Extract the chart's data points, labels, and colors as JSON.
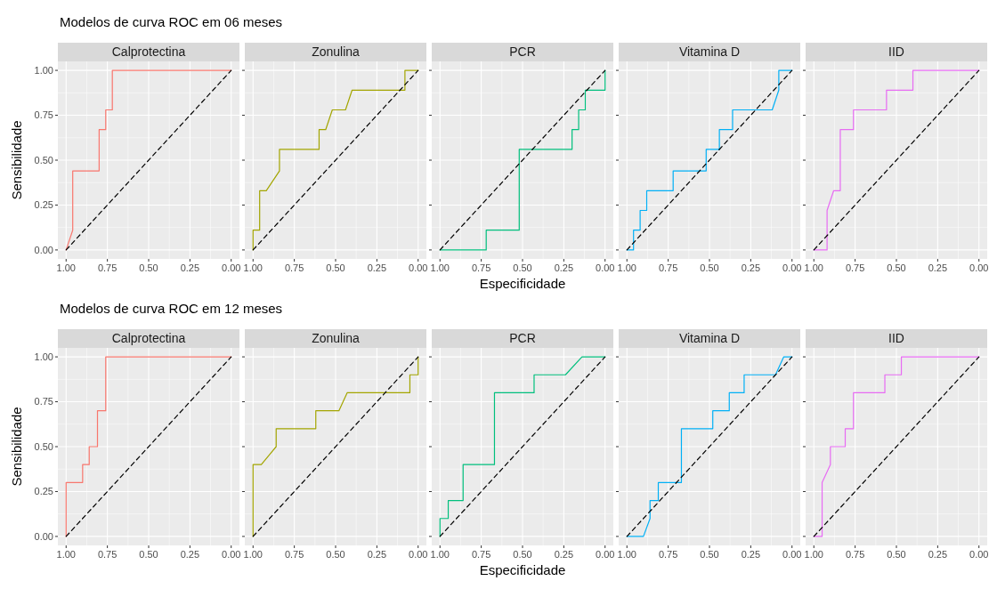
{
  "chart_data": [
    {
      "type": "line",
      "title": "Calprotectina",
      "annotations": [
        "Modelos de curva ROC em 06 meses"
      ],
      "ylabel": "Sensibilidade",
      "xlim": [
        1.05,
        -0.05
      ],
      "ylim": [
        -0.05,
        1.05
      ],
      "xticks": [
        {
          "value": 1,
          "label": "1.00"
        },
        {
          "value": 0.75,
          "label": "0.75"
        },
        {
          "value": 0.5,
          "label": "0.50"
        },
        {
          "value": 0.25,
          "label": "0.25"
        },
        {
          "value": 0,
          "label": "0.00"
        }
      ],
      "yticks": [
        {
          "value": 0,
          "label": "0.00"
        },
        {
          "value": 0.25,
          "label": "0.25"
        },
        {
          "value": 0.5,
          "label": "0.50"
        },
        {
          "value": 0.75,
          "label": "0.75"
        },
        {
          "value": 1,
          "label": "1.00"
        }
      ],
      "grid": true,
      "series": [
        {
          "color": "#f8766d",
          "x": [
            1,
            0.96,
            0.96,
            0.8,
            0.8,
            0.76,
            0.76,
            0.72,
            0.72,
            0
          ],
          "values": [
            0,
            0.11,
            0.44,
            0.44,
            0.67,
            0.67,
            0.78,
            0.78,
            1,
            1
          ]
        },
        {
          "color": "#000000",
          "line_style": "dashed",
          "x": [
            1,
            0
          ],
          "values": [
            0,
            1
          ]
        }
      ]
    },
    {
      "type": "line",
      "title": "Zonulina",
      "xlim": [
        1.05,
        -0.05
      ],
      "ylim": [
        -0.05,
        1.05
      ],
      "xticks": [
        {
          "value": 1,
          "label": "1.00"
        },
        {
          "value": 0.75,
          "label": "0.75"
        },
        {
          "value": 0.5,
          "label": "0.50"
        },
        {
          "value": 0.25,
          "label": "0.25"
        },
        {
          "value": 0,
          "label": "0.00"
        }
      ],
      "yticks": [
        {
          "value": 0,
          "label": null
        },
        {
          "value": 0.25,
          "label": null
        },
        {
          "value": 0.5,
          "label": null
        },
        {
          "value": 0.75,
          "label": null
        },
        {
          "value": 1,
          "label": null
        }
      ],
      "grid": true,
      "tick_labels": "x",
      "series": [
        {
          "color": "#a3a500",
          "x": [
            1,
            1,
            0.96,
            0.96,
            0.92,
            0.84,
            0.84,
            0.6,
            0.6,
            0.56,
            0.52,
            0.44,
            0.4,
            0.08,
            0.08,
            0
          ],
          "values": [
            0,
            0.11,
            0.11,
            0.33,
            0.33,
            0.44,
            0.56,
            0.56,
            0.67,
            0.67,
            0.78,
            0.78,
            0.89,
            0.89,
            1,
            1
          ]
        },
        {
          "color": "#000000",
          "line_style": "dashed",
          "x": [
            1,
            0
          ],
          "values": [
            0,
            1
          ]
        }
      ]
    },
    {
      "type": "line",
      "title": "PCR",
      "xlabel": "Especificidade",
      "xlim": [
        1.05,
        -0.05
      ],
      "ylim": [
        -0.05,
        1.05
      ],
      "xticks": [
        {
          "value": 1,
          "label": "1.00"
        },
        {
          "value": 0.75,
          "label": "0.75"
        },
        {
          "value": 0.5,
          "label": "0.50"
        },
        {
          "value": 0.25,
          "label": "0.25"
        },
        {
          "value": 0,
          "label": "0.00"
        }
      ],
      "yticks": [
        {
          "value": 0,
          "label": null
        },
        {
          "value": 0.25,
          "label": null
        },
        {
          "value": 0.5,
          "label": null
        },
        {
          "value": 0.75,
          "label": null
        },
        {
          "value": 1,
          "label": null
        }
      ],
      "grid": true,
      "tick_labels": "x",
      "series": [
        {
          "color": "#00bf7d",
          "x": [
            1,
            0.72,
            0.72,
            0.52,
            0.52,
            0.2,
            0.2,
            0.16,
            0.16,
            0.12,
            0.12,
            0,
            0
          ],
          "values": [
            0,
            0,
            0.11,
            0.11,
            0.56,
            0.56,
            0.67,
            0.67,
            0.78,
            0.78,
            0.89,
            0.89,
            1
          ]
        },
        {
          "color": "#000000",
          "line_style": "dashed",
          "x": [
            1,
            0
          ],
          "values": [
            0,
            1
          ]
        }
      ]
    },
    {
      "type": "line",
      "title": "Vitamina D",
      "xlim": [
        1.05,
        -0.05
      ],
      "ylim": [
        -0.05,
        1.05
      ],
      "xticks": [
        {
          "value": 1,
          "label": "1.00"
        },
        {
          "value": 0.75,
          "label": "0.75"
        },
        {
          "value": 0.5,
          "label": "0.50"
        },
        {
          "value": 0.25,
          "label": "0.25"
        },
        {
          "value": 0,
          "label": "0.00"
        }
      ],
      "yticks": [
        {
          "value": 0,
          "label": null
        },
        {
          "value": 0.25,
          "label": null
        },
        {
          "value": 0.5,
          "label": null
        },
        {
          "value": 0.75,
          "label": null
        },
        {
          "value": 1,
          "label": null
        }
      ],
      "grid": true,
      "tick_labels": "x",
      "series": [
        {
          "color": "#00b0f6",
          "x": [
            1,
            0.96,
            0.96,
            0.92,
            0.92,
            0.88,
            0.88,
            0.72,
            0.72,
            0.52,
            0.52,
            0.44,
            0.44,
            0.36,
            0.36,
            0.12,
            0.08,
            0.08,
            0
          ],
          "values": [
            0,
            0,
            0.11,
            0.11,
            0.22,
            0.22,
            0.33,
            0.33,
            0.44,
            0.44,
            0.56,
            0.56,
            0.67,
            0.67,
            0.78,
            0.78,
            0.89,
            1,
            1
          ]
        },
        {
          "color": "#000000",
          "line_style": "dashed",
          "x": [
            1,
            0
          ],
          "values": [
            0,
            1
          ]
        }
      ]
    },
    {
      "type": "line",
      "title": "IID",
      "xlim": [
        1.05,
        -0.05
      ],
      "ylim": [
        -0.05,
        1.05
      ],
      "xticks": [
        {
          "value": 1,
          "label": "1.00"
        },
        {
          "value": 0.75,
          "label": "0.75"
        },
        {
          "value": 0.5,
          "label": "0.50"
        },
        {
          "value": 0.25,
          "label": "0.25"
        },
        {
          "value": 0,
          "label": "0.00"
        }
      ],
      "yticks": [
        {
          "value": 0,
          "label": null
        },
        {
          "value": 0.25,
          "label": null
        },
        {
          "value": 0.5,
          "label": null
        },
        {
          "value": 0.75,
          "label": null
        },
        {
          "value": 1,
          "label": null
        }
      ],
      "grid": true,
      "tick_labels": "x",
      "series": [
        {
          "color": "#e76bf3",
          "x": [
            1,
            0.92,
            0.92,
            0.88,
            0.84,
            0.84,
            0.76,
            0.76,
            0.56,
            0.56,
            0.4,
            0.4,
            0
          ],
          "values": [
            0,
            0,
            0.22,
            0.33,
            0.33,
            0.67,
            0.67,
            0.78,
            0.78,
            0.89,
            0.89,
            1,
            1
          ]
        },
        {
          "color": "#000000",
          "line_style": "dashed",
          "x": [
            1,
            0
          ],
          "values": [
            0,
            1
          ]
        }
      ]
    },
    {
      "type": "line",
      "title": "Calprotectina",
      "annotations": [
        "Modelos de curva ROC em 12 meses"
      ],
      "ylabel": "Sensibilidade",
      "xlim": [
        1.05,
        -0.05
      ],
      "ylim": [
        -0.05,
        1.05
      ],
      "xticks": [
        {
          "value": 1,
          "label": "1.00"
        },
        {
          "value": 0.75,
          "label": "0.75"
        },
        {
          "value": 0.5,
          "label": "0.50"
        },
        {
          "value": 0.25,
          "label": "0.25"
        },
        {
          "value": 0,
          "label": "0.00"
        }
      ],
      "yticks": [
        {
          "value": 0,
          "label": "0.00"
        },
        {
          "value": 0.25,
          "label": "0.25"
        },
        {
          "value": 0.5,
          "label": "0.50"
        },
        {
          "value": 0.75,
          "label": "0.75"
        },
        {
          "value": 1,
          "label": "1.00"
        }
      ],
      "grid": true,
      "series": [
        {
          "color": "#f8766d",
          "x": [
            1,
            1,
            0.9,
            0.9,
            0.86,
            0.86,
            0.81,
            0.81,
            0.76,
            0.76,
            0
          ],
          "values": [
            0,
            0.3,
            0.3,
            0.4,
            0.4,
            0.5,
            0.5,
            0.7,
            0.7,
            1,
            1
          ]
        },
        {
          "color": "#000000",
          "line_style": "dashed",
          "x": [
            1,
            0
          ],
          "values": [
            0,
            1
          ]
        }
      ]
    },
    {
      "type": "line",
      "title": "Zonulina",
      "xlim": [
        1.05,
        -0.05
      ],
      "ylim": [
        -0.05,
        1.05
      ],
      "xticks": [
        {
          "value": 1,
          "label": "1.00"
        },
        {
          "value": 0.75,
          "label": "0.75"
        },
        {
          "value": 0.5,
          "label": "0.50"
        },
        {
          "value": 0.25,
          "label": "0.25"
        },
        {
          "value": 0,
          "label": "0.00"
        }
      ],
      "yticks": [
        {
          "value": 0,
          "label": null
        },
        {
          "value": 0.25,
          "label": null
        },
        {
          "value": 0.5,
          "label": null
        },
        {
          "value": 0.75,
          "label": null
        },
        {
          "value": 1,
          "label": null
        }
      ],
      "grid": true,
      "tick_labels": "x",
      "series": [
        {
          "color": "#a3a500",
          "x": [
            1,
            1,
            0.95,
            0.86,
            0.86,
            0.62,
            0.62,
            0.48,
            0.43,
            0.05,
            0.05,
            0,
            0
          ],
          "values": [
            0,
            0.4,
            0.4,
            0.5,
            0.6,
            0.6,
            0.7,
            0.7,
            0.8,
            0.8,
            0.9,
            0.9,
            1
          ]
        },
        {
          "color": "#000000",
          "line_style": "dashed",
          "x": [
            1,
            0
          ],
          "values": [
            0,
            1
          ]
        }
      ]
    },
    {
      "type": "line",
      "title": "PCR",
      "xlabel": "Especificidade",
      "xlim": [
        1.05,
        -0.05
      ],
      "ylim": [
        -0.05,
        1.05
      ],
      "xticks": [
        {
          "value": 1,
          "label": "1.00"
        },
        {
          "value": 0.75,
          "label": "0.75"
        },
        {
          "value": 0.5,
          "label": "0.50"
        },
        {
          "value": 0.25,
          "label": "0.25"
        },
        {
          "value": 0,
          "label": "0.00"
        }
      ],
      "yticks": [
        {
          "value": 0,
          "label": null
        },
        {
          "value": 0.25,
          "label": null
        },
        {
          "value": 0.5,
          "label": null
        },
        {
          "value": 0.75,
          "label": null
        },
        {
          "value": 1,
          "label": null
        }
      ],
      "grid": true,
      "tick_labels": "x",
      "series": [
        {
          "color": "#00bf7d",
          "x": [
            1,
            1,
            0.95,
            0.95,
            0.86,
            0.86,
            0.67,
            0.67,
            0.43,
            0.43,
            0.24,
            0.14,
            0
          ],
          "values": [
            0,
            0.1,
            0.1,
            0.2,
            0.2,
            0.4,
            0.4,
            0.8,
            0.8,
            0.9,
            0.9,
            1,
            1
          ]
        },
        {
          "color": "#000000",
          "line_style": "dashed",
          "x": [
            1,
            0
          ],
          "values": [
            0,
            1
          ]
        }
      ]
    },
    {
      "type": "line",
      "title": "Vitamina D",
      "xlim": [
        1.05,
        -0.05
      ],
      "ylim": [
        -0.05,
        1.05
      ],
      "xticks": [
        {
          "value": 1,
          "label": "1.00"
        },
        {
          "value": 0.75,
          "label": "0.75"
        },
        {
          "value": 0.5,
          "label": "0.50"
        },
        {
          "value": 0.25,
          "label": "0.25"
        },
        {
          "value": 0,
          "label": "0.00"
        }
      ],
      "yticks": [
        {
          "value": 0,
          "label": null
        },
        {
          "value": 0.25,
          "label": null
        },
        {
          "value": 0.5,
          "label": null
        },
        {
          "value": 0.75,
          "label": null
        },
        {
          "value": 1,
          "label": null
        }
      ],
      "grid": true,
      "tick_labels": "x",
      "series": [
        {
          "color": "#00b0f6",
          "x": [
            1,
            0.9,
            0.86,
            0.86,
            0.81,
            0.81,
            0.67,
            0.67,
            0.48,
            0.48,
            0.38,
            0.38,
            0.29,
            0.29,
            0.1,
            0.05,
            0
          ],
          "values": [
            0,
            0,
            0.1,
            0.2,
            0.2,
            0.3,
            0.3,
            0.6,
            0.6,
            0.7,
            0.7,
            0.8,
            0.8,
            0.9,
            0.9,
            1,
            1
          ]
        },
        {
          "color": "#000000",
          "line_style": "dashed",
          "x": [
            1,
            0
          ],
          "values": [
            0,
            1
          ]
        }
      ]
    },
    {
      "type": "line",
      "title": "IID",
      "xlim": [
        1.05,
        -0.05
      ],
      "ylim": [
        -0.05,
        1.05
      ],
      "xticks": [
        {
          "value": 1,
          "label": "1.00"
        },
        {
          "value": 0.75,
          "label": "0.75"
        },
        {
          "value": 0.5,
          "label": "0.50"
        },
        {
          "value": 0.25,
          "label": "0.25"
        },
        {
          "value": 0,
          "label": "0.00"
        }
      ],
      "yticks": [
        {
          "value": 0,
          "label": null
        },
        {
          "value": 0.25,
          "label": null
        },
        {
          "value": 0.5,
          "label": null
        },
        {
          "value": 0.75,
          "label": null
        },
        {
          "value": 1,
          "label": null
        }
      ],
      "grid": true,
      "tick_labels": "x",
      "series": [
        {
          "color": "#e76bf3",
          "x": [
            1,
            0.95,
            0.95,
            0.9,
            0.9,
            0.81,
            0.81,
            0.76,
            0.76,
            0.57,
            0.57,
            0.47,
            0.47,
            0
          ],
          "values": [
            0,
            0,
            0.3,
            0.4,
            0.5,
            0.5,
            0.6,
            0.6,
            0.8,
            0.8,
            0.9,
            0.9,
            1,
            1
          ]
        },
        {
          "color": "#000000",
          "line_style": "dashed",
          "x": [
            1,
            0
          ],
          "values": [
            0,
            1
          ]
        }
      ]
    }
  ]
}
